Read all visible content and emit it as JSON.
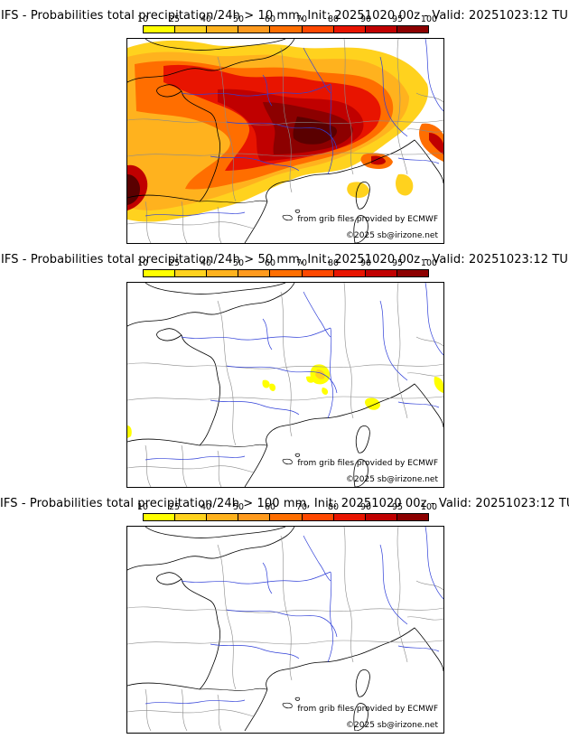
{
  "colors": {
    "scale": [
      "#ffff00",
      "#ffd21e",
      "#ffb21e",
      "#ff9a1e",
      "#ff6e00",
      "#ff4800",
      "#e81400",
      "#c00000",
      "#8c0000",
      "#5a0000"
    ],
    "rivers": "#2f3fd8",
    "borders": "#8a8a8a",
    "coast": "#000000"
  },
  "scale_labels": [
    "10",
    "25",
    "40",
    "50",
    "60",
    "70",
    "80",
    "90",
    "95",
    "100"
  ],
  "panels": [
    {
      "title": "IFS - Probabilities total precipitation/24h > 10 mm, Init: 20251020 00z - Valid: 20251023:12 TU",
      "threshold_mm": 10,
      "credit_source": "from grib files provided by ECMWF",
      "credit_copyright": "©2025 sb@irizone.net"
    },
    {
      "title": "IFS - Probabilities total precipitation/24h > 50 mm, Init: 20251020 00z - Valid: 20251023:12 TU",
      "threshold_mm": 50,
      "credit_source": "from grib files provided by ECMWF",
      "credit_copyright": "©2025 sb@irizone.net"
    },
    {
      "title": "IFS - Probabilities total precipitation/24h > 100 mm, Init: 20251020 00z - Valid: 20251023:12 TU",
      "threshold_mm": 100,
      "credit_source": "from grib files provided by ECMWF",
      "credit_copyright": "©2025 sb@irizone.net"
    }
  ]
}
